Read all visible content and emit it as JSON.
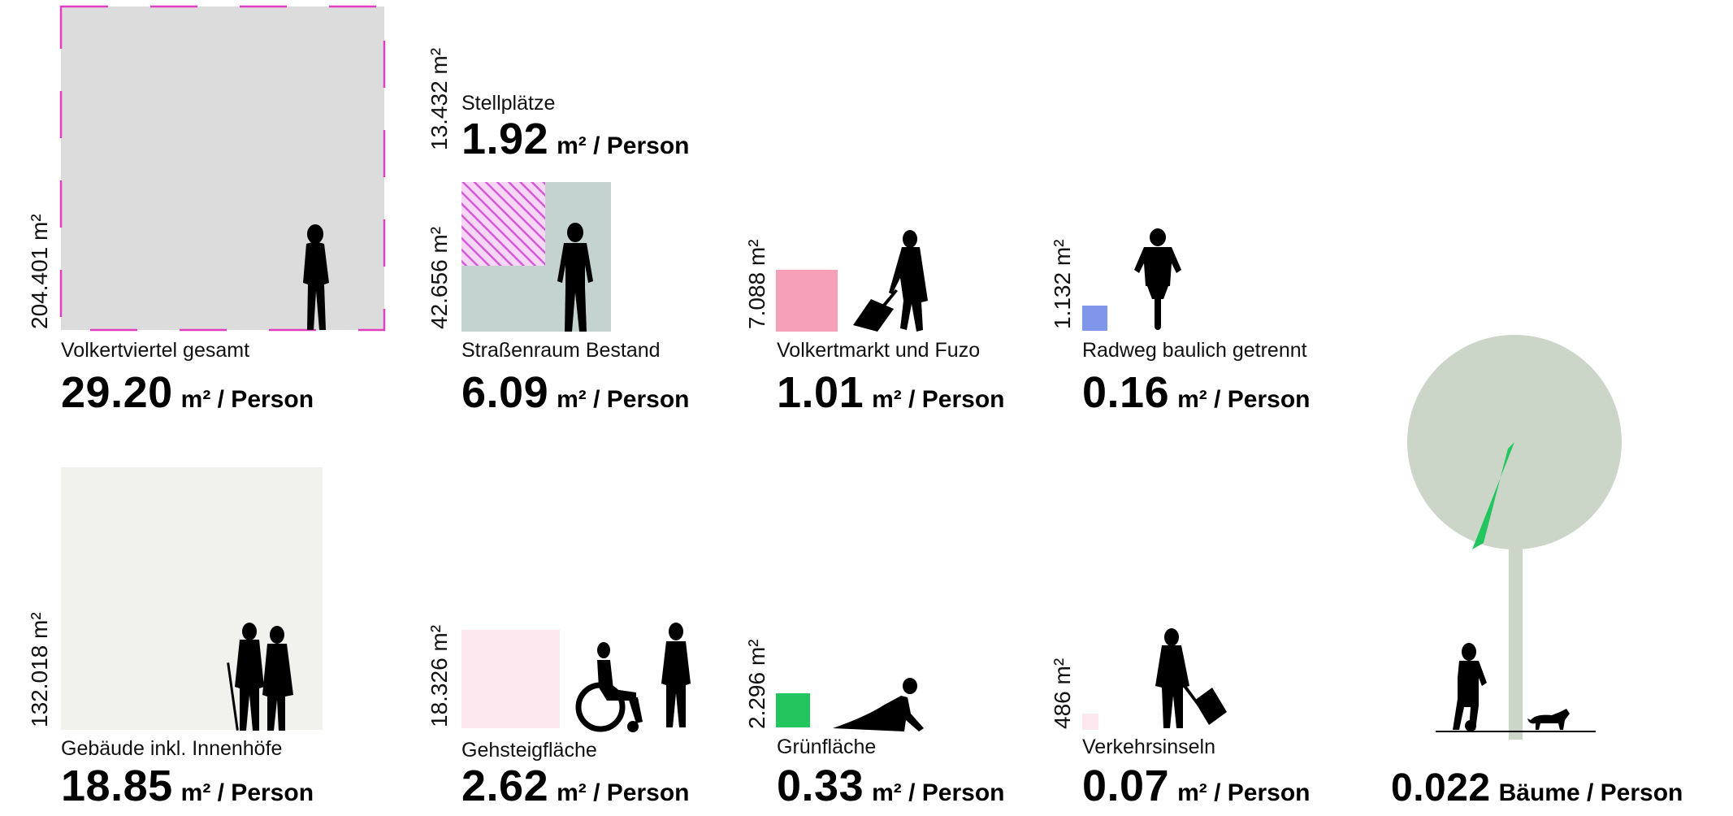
{
  "colors": {
    "gesamt_fill": "#dcdcdc",
    "gesamt_border": "#e040c0",
    "strassenraum_fill": "#c5d3d0",
    "stellplaetze_hatch": "#d45ad8",
    "volkertmarkt": "#f7a1b9",
    "radweg": "#7f96ea",
    "gebaeude": "#f1f1ee",
    "gehsteig": "#fce8ee",
    "gruen": "#22c55e",
    "verkehrsinseln": "#fce8ee",
    "baum": "#ccd6c8",
    "baum_wedge": "#22c55e"
  },
  "unit_label": "m² / Person",
  "areas": {
    "gesamt": {
      "label": "Volkertviertel gesamt",
      "size": "204.401 m²",
      "per_person": "29.20",
      "unit": "m² / Person"
    },
    "stellplaetze": {
      "label": "Stellplätze",
      "size": "13.432 m²",
      "per_person": "1.92",
      "unit": "m² / Person"
    },
    "strassenraum": {
      "label": "Straßenraum Bestand",
      "size": "42.656 m²",
      "per_person": "6.09",
      "unit": "m² / Person"
    },
    "volkertmarkt": {
      "label": "Volkertmarkt und Fuzo",
      "size": "7.088 m²",
      "per_person": "1.01",
      "unit": "m² / Person"
    },
    "radweg": {
      "label": "Radweg baulich getrennt",
      "size": "1.132 m²",
      "per_person": "0.16",
      "unit": "m² / Person"
    },
    "gebaeude": {
      "label": "Gebäude inkl. Innenhöfe",
      "size": "132.018 m²",
      "per_person": "18.85",
      "unit": "m² / Person"
    },
    "gehsteig": {
      "label": "Gehsteigfläche",
      "size": "18.326 m²",
      "per_person": "2.62",
      "unit": "m² / Person"
    },
    "gruen": {
      "label": "Grünfläche",
      "size": "2.296 m²",
      "per_person": "0.33",
      "unit": "m² / Person"
    },
    "verkehrsinseln": {
      "label": "Verkehrsinseln",
      "size": "486 m²",
      "per_person": "0.07",
      "unit": "m² / Person"
    },
    "baeume": {
      "per_person": "0.022",
      "unit": "Bäume / Person"
    }
  }
}
